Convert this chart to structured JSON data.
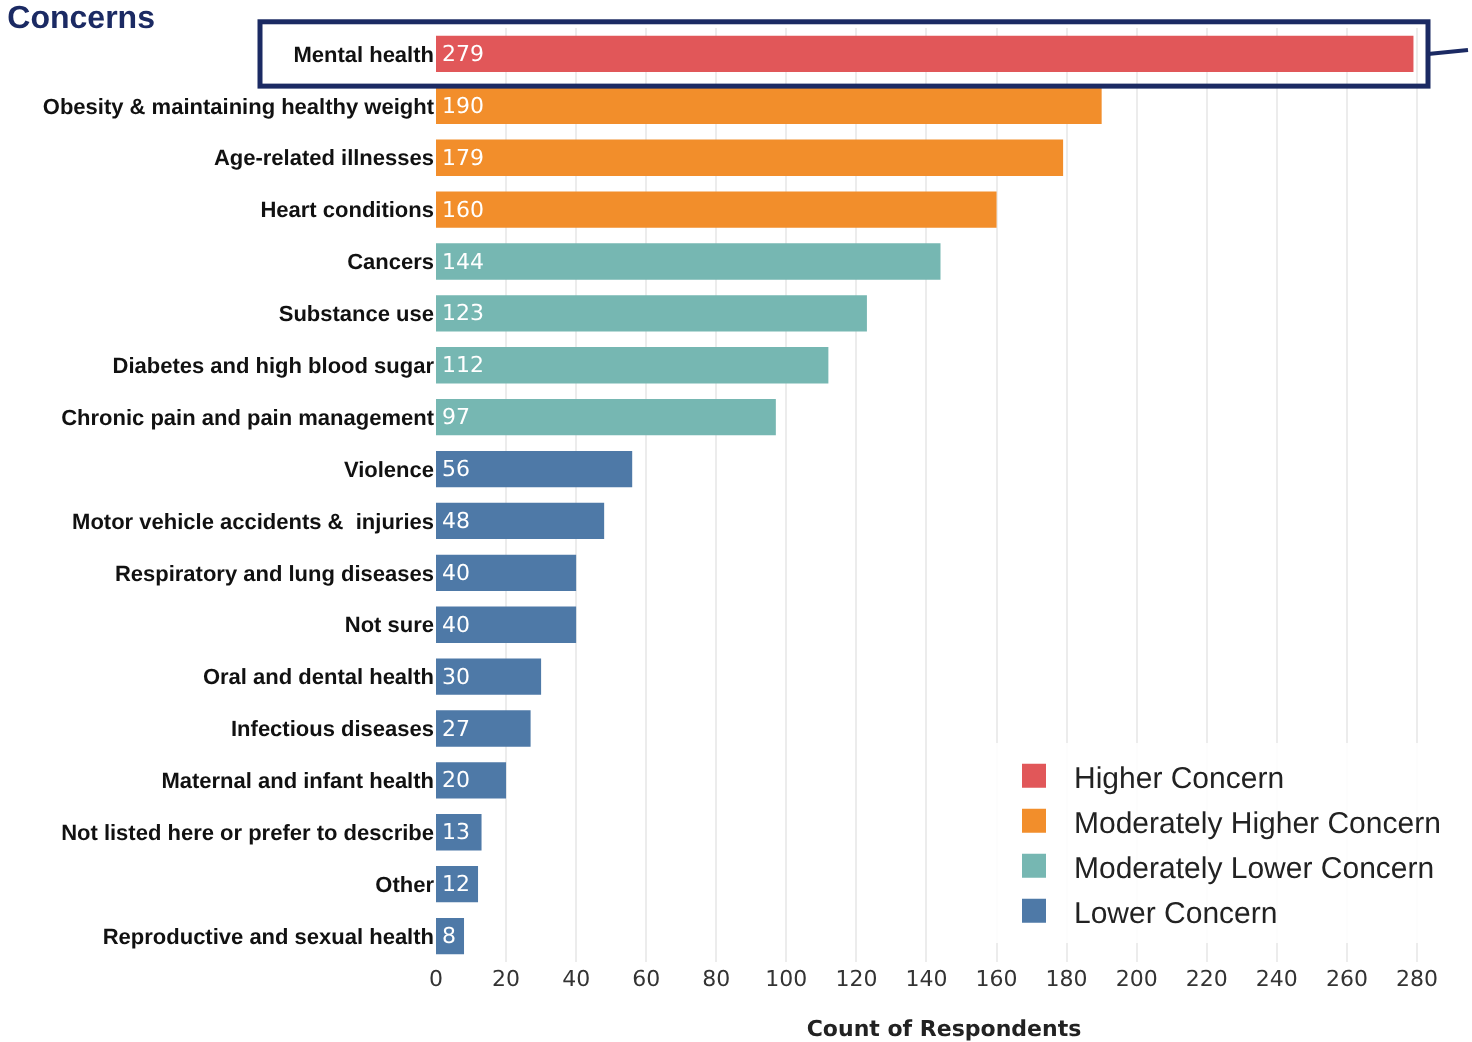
{
  "chart_data": {
    "type": "bar",
    "orientation": "horizontal",
    "title": "Concerns",
    "xlabel": "Count of Respondents",
    "categories": [
      "Mental health",
      "Obesity & maintaining healthy weight",
      "Age-related illnesses",
      "Heart conditions",
      "Cancers",
      "Substance use",
      "Diabetes and high blood sugar",
      "Chronic pain and pain management",
      "Violence",
      "Motor vehicle accidents &  injuries",
      "Respiratory and lung diseases",
      "Not sure",
      "Oral and dental health",
      "Infectious diseases",
      "Maternal and infant health",
      "Not listed here or prefer to describe",
      "Other",
      "Reproductive and sexual health"
    ],
    "series": [
      {
        "name": "Higher Concern",
        "color": "#e15759",
        "values": [
          279,
          null,
          null,
          null,
          null,
          null,
          null,
          null,
          null,
          null,
          null,
          null,
          null,
          null,
          null,
          null,
          null,
          null
        ]
      },
      {
        "name": "Moderately Higher Concern",
        "color": "#f28e2b",
        "values": [
          null,
          190,
          179,
          160,
          null,
          null,
          null,
          null,
          null,
          null,
          null,
          null,
          null,
          null,
          null,
          null,
          null,
          null
        ]
      },
      {
        "name": "Moderately Lower Concern",
        "color": "#76b7b2",
        "values": [
          null,
          null,
          null,
          null,
          144,
          123,
          112,
          97,
          null,
          null,
          null,
          null,
          null,
          null,
          null,
          null,
          null,
          null
        ]
      },
      {
        "name": "Lower Concern",
        "color": "#4e79a7",
        "values": [
          null,
          null,
          null,
          null,
          null,
          null,
          null,
          null,
          56,
          48,
          40,
          40,
          30,
          27,
          20,
          13,
          12,
          8
        ]
      }
    ],
    "xlim": [
      0,
      290
    ],
    "xticks": [
      0,
      20,
      40,
      60,
      80,
      100,
      120,
      140,
      160,
      180,
      200,
      220,
      240,
      260,
      280
    ],
    "grid": "x",
    "legend": "bottom right",
    "data_labels": true
  }
}
